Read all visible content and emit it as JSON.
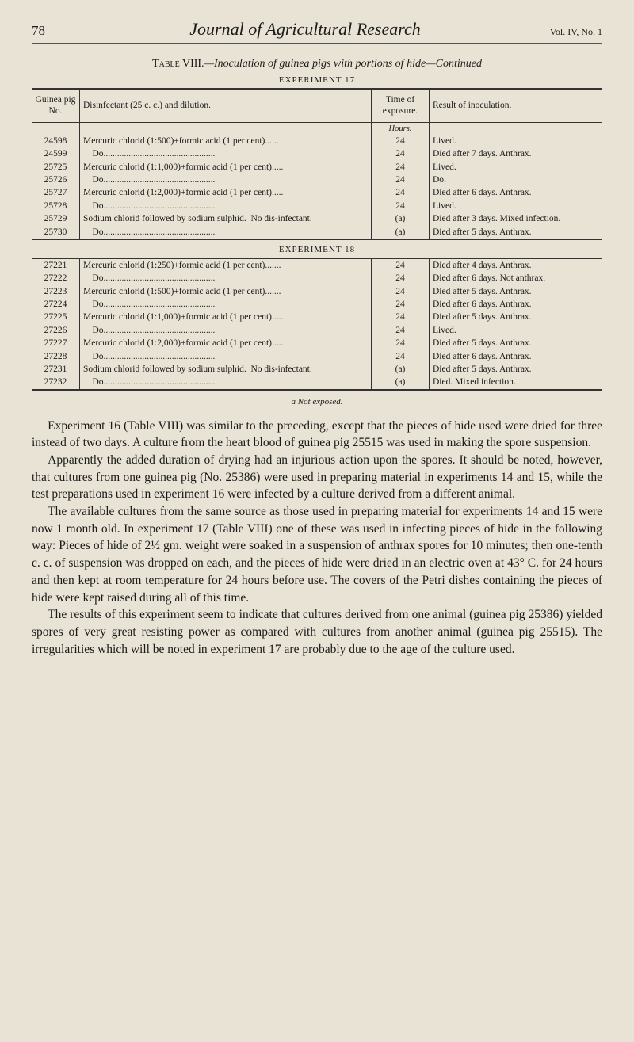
{
  "header": {
    "page_number": "78",
    "journal": "Journal of Agricultural Research",
    "volume": "Vol. IV, No. 1"
  },
  "table_caption": {
    "prefix": "Table VIII.",
    "title": "—Inoculation of guinea pigs with portions of hide—Continued"
  },
  "experiment17": {
    "label": "EXPERIMENT 17",
    "columns": {
      "pig": "Guinea pig No.",
      "disinfectant": "Disinfectant (25 c. c.) and dilution.",
      "time": "Time of exposure.",
      "result": "Result of inoculation."
    },
    "time_unit": "Hours.",
    "rows": [
      {
        "pig": "24598",
        "dis": "Mercuric chlorid (1:500)+formic acid (1 per cent)......",
        "time": "24",
        "res": "Lived."
      },
      {
        "pig": "24599",
        "dis": "    Do.................................................",
        "time": "24",
        "res": "Died after 7 days.  Anthrax."
      },
      {
        "pig": "25725",
        "dis": "Mercuric chlorid (1:1,000)+formic acid (1 per cent).....",
        "time": "24",
        "res": "Lived."
      },
      {
        "pig": "25726",
        "dis": "    Do.................................................",
        "time": "24",
        "res": "    Do."
      },
      {
        "pig": "25727",
        "dis": "Mercuric chlorid (1:2,000)+formic acid (1 per cent).....",
        "time": "24",
        "res": "Died after 6 days.  Anthrax."
      },
      {
        "pig": "25728",
        "dis": "    Do.................................................",
        "time": "24",
        "res": "Lived."
      },
      {
        "pig": "25729",
        "dis": "Sodium chlorid followed by sodium sulphid.  No dis-infectant.",
        "time": "(a)",
        "res": "Died after 3 days.  Mixed infection."
      },
      {
        "pig": "25730",
        "dis": "    Do.................................................",
        "time": "(a)",
        "res": "Died after 5 days.  Anthrax."
      }
    ]
  },
  "experiment18": {
    "label": "EXPERIMENT 18",
    "rows": [
      {
        "pig": "27221",
        "dis": "Mercuric chlorid (1:250)+formic acid (1 per cent).......",
        "time": "24",
        "res": "Died after 4 days.  Anthrax."
      },
      {
        "pig": "27222",
        "dis": "    Do.................................................",
        "time": "24",
        "res": "Died after 6 days. Not anthrax."
      },
      {
        "pig": "27223",
        "dis": "Mercuric chlorid (1:500)+formic acid (1 per cent).......",
        "time": "24",
        "res": "Died after 5 days.  Anthrax."
      },
      {
        "pig": "27224",
        "dis": "    Do.................................................",
        "time": "24",
        "res": "Died after 6 days.  Anthrax."
      },
      {
        "pig": "27225",
        "dis": "Mercuric chlorid (1:1,000)+formic acid (1 per cent).....",
        "time": "24",
        "res": "Died after 5 days.  Anthrax."
      },
      {
        "pig": "27226",
        "dis": "    Do.................................................",
        "time": "24",
        "res": "Lived."
      },
      {
        "pig": "27227",
        "dis": "Mercuric chlorid (1:2,000)+formic acid (1 per cent).....",
        "time": "24",
        "res": "Died after 5 days.  Anthrax."
      },
      {
        "pig": "27228",
        "dis": "    Do.................................................",
        "time": "24",
        "res": "Died after 6 days.  Anthrax."
      },
      {
        "pig": "27231",
        "dis": "Sodium chlorid followed by sodium sulphid.  No dis-infectant.",
        "time": "(a)",
        "res": "Died after 5 days.  Anthrax."
      },
      {
        "pig": "27232",
        "dis": "    Do.................................................",
        "time": "(a)",
        "res": "Died.  Mixed infection."
      }
    ]
  },
  "footnote": "a Not exposed.",
  "paragraphs": [
    "Experiment 16 (Table VIII) was similar to the preceding, except that the pieces of hide used were dried for three instead of two days. A culture from the heart blood of guinea pig 25515 was used in making the spore suspension.",
    "Apparently the added duration of drying had an injurious action upon the spores. It should be noted, however, that cultures from one guinea pig (No. 25386) were used in preparing material in experiments 14 and 15, while the test preparations used in experiment 16 were infected by a culture derived from a different animal.",
    "The available cultures from the same source as those used in preparing material for experiments 14 and 15 were now 1 month old. In experiment 17 (Table VIII) one of these was used in infecting pieces of hide in the following way: Pieces of hide of 2½ gm. weight were soaked in a suspension of anthrax spores for 10 minutes; then one-tenth c. c. of suspension was dropped on each, and the pieces of hide were dried in an electric oven at 43° C. for 24 hours and then kept at room temperature for 24 hours before use. The covers of the Petri dishes containing the pieces of hide were kept raised during all of this time.",
    "The results of this experiment seem to indicate that cultures derived from one animal (guinea pig 25386) yielded spores of very great resisting power as compared with cultures from another animal (guinea pig 25515). The irregularities which will be noted in experiment 17 are probably due to the age of the culture used."
  ]
}
